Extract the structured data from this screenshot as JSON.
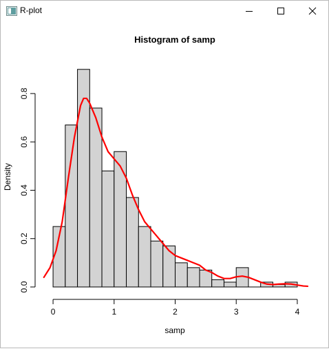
{
  "window": {
    "title": "R-plot"
  },
  "chart_data": {
    "type": "bar",
    "title": "Histogram of samp",
    "xlabel": "samp",
    "ylabel": "Density",
    "bin_edges": [
      0,
      0.2,
      0.4,
      0.6,
      0.8,
      1.0,
      1.2,
      1.4,
      1.6,
      1.8,
      2.0,
      2.2,
      2.4,
      2.6,
      2.8,
      3.0,
      3.2,
      3.4,
      3.6,
      3.8,
      4.0
    ],
    "values": [
      0.25,
      0.67,
      0.9,
      0.74,
      0.48,
      0.56,
      0.37,
      0.25,
      0.19,
      0.17,
      0.1,
      0.08,
      0.07,
      0.03,
      0.02,
      0.08,
      0,
      0.02,
      0.01,
      0.02
    ],
    "xlim": [
      -0.17,
      4.17
    ],
    "ylim": [
      -0.02,
      0.925
    ],
    "xticks": [
      0,
      1,
      2,
      3,
      4
    ],
    "yticks": [
      0.0,
      0.2,
      0.4,
      0.6,
      0.8
    ],
    "xtick_labels": [
      "0",
      "1",
      "2",
      "3",
      "4"
    ],
    "ytick_labels": [
      "0.0",
      "0.2",
      "0.4",
      "0.6",
      "0.8"
    ],
    "bar_fill": "#d3d3d3",
    "bar_stroke": "#000000",
    "density_line": {
      "color": "#ff0000",
      "points": [
        [
          -0.15,
          0.04
        ],
        [
          -0.05,
          0.08
        ],
        [
          0.05,
          0.15
        ],
        [
          0.15,
          0.27
        ],
        [
          0.25,
          0.45
        ],
        [
          0.35,
          0.62
        ],
        [
          0.45,
          0.75
        ],
        [
          0.5,
          0.78
        ],
        [
          0.55,
          0.78
        ],
        [
          0.6,
          0.76
        ],
        [
          0.7,
          0.7
        ],
        [
          0.8,
          0.62
        ],
        [
          0.9,
          0.56
        ],
        [
          1.0,
          0.53
        ],
        [
          1.1,
          0.5
        ],
        [
          1.2,
          0.45
        ],
        [
          1.3,
          0.38
        ],
        [
          1.4,
          0.32
        ],
        [
          1.5,
          0.27
        ],
        [
          1.6,
          0.24
        ],
        [
          1.7,
          0.21
        ],
        [
          1.8,
          0.18
        ],
        [
          1.9,
          0.15
        ],
        [
          2.0,
          0.13
        ],
        [
          2.1,
          0.12
        ],
        [
          2.2,
          0.11
        ],
        [
          2.3,
          0.1
        ],
        [
          2.4,
          0.09
        ],
        [
          2.5,
          0.07
        ],
        [
          2.6,
          0.06
        ],
        [
          2.7,
          0.045
        ],
        [
          2.8,
          0.035
        ],
        [
          2.9,
          0.035
        ],
        [
          3.0,
          0.042
        ],
        [
          3.1,
          0.045
        ],
        [
          3.2,
          0.04
        ],
        [
          3.3,
          0.03
        ],
        [
          3.4,
          0.02
        ],
        [
          3.5,
          0.012
        ],
        [
          3.6,
          0.01
        ],
        [
          3.7,
          0.012
        ],
        [
          3.8,
          0.013
        ],
        [
          3.9,
          0.012
        ],
        [
          4.0,
          0.008
        ],
        [
          4.1,
          0.004
        ],
        [
          4.17,
          0.003
        ]
      ]
    }
  }
}
